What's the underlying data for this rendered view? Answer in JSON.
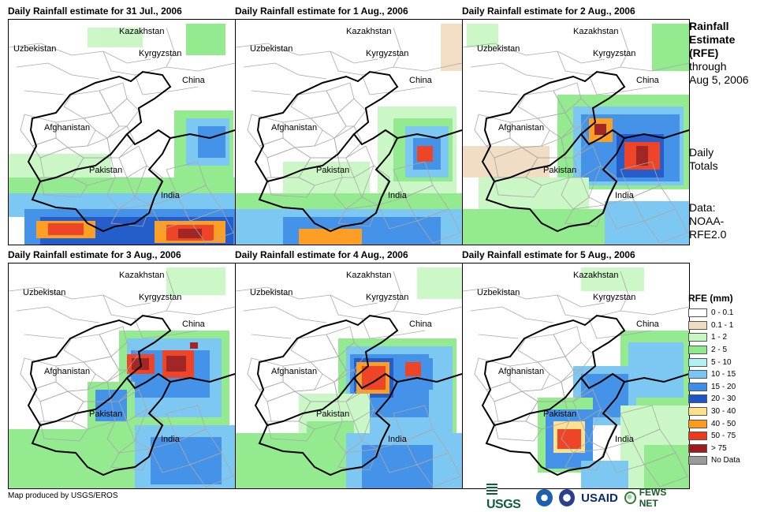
{
  "panels": [
    {
      "title": "Daily Rainfall estimate for 31 Jul., 2006"
    },
    {
      "title": "Daily Rainfall estimate for 1 Aug., 2006"
    },
    {
      "title": "Daily Rainfall estimate for 2 Aug., 2006"
    },
    {
      "title": "Daily Rainfall estimate for 3 Aug., 2006"
    },
    {
      "title": "Daily Rainfall estimate for 4 Aug., 2006"
    },
    {
      "title": "Daily Rainfall estimate for 5 Aug., 2006"
    }
  ],
  "map_labels": {
    "kazakhstan": "Kazakhstan",
    "uzbekistan": "Uzbekistan",
    "kyrgyzstan": "Kyrgyzstan",
    "china": "China",
    "afghanistan": "Afghanistan",
    "pakistan": "Pakistan",
    "india": "India"
  },
  "sidebar": {
    "heading_line1": "Rainfall",
    "heading_line2": "Estimate",
    "heading_line3": "(RFE)",
    "through_line1": "through",
    "through_line2": "Aug 5, 2006",
    "totals_line1": "Daily",
    "totals_line2": "Totals",
    "data_line1": "Data:",
    "data_line2": "NOAA-",
    "data_line3": "RFE2.0"
  },
  "legend": {
    "title": "RFE (mm)",
    "items": [
      {
        "label": "0 - 0.1",
        "color": "#ffffff"
      },
      {
        "label": "0.1 - 1",
        "color": "#f0dcc0"
      },
      {
        "label": "1 - 2",
        "color": "#c9f7c4"
      },
      {
        "label": "2 - 5",
        "color": "#8ee98a"
      },
      {
        "label": "5 - 10",
        "color": "#aef2f2"
      },
      {
        "label": "10 - 15",
        "color": "#77c6f3"
      },
      {
        "label": "15 - 20",
        "color": "#3c8ee8"
      },
      {
        "label": "20 - 30",
        "color": "#1a56c8"
      },
      {
        "label": "30 - 40",
        "color": "#fde089"
      },
      {
        "label": "40 - 50",
        "color": "#fd9a1a"
      },
      {
        "label": "50 - 75",
        "color": "#ee3a1c"
      },
      {
        "label": "> 75",
        "color": "#9d1b1b"
      },
      {
        "label": "No Data",
        "color": "#9a9a9a"
      }
    ]
  },
  "footer": {
    "credit": "Map produced by USGS/EROS",
    "logo_usgs": "USGS",
    "logo_usaid": "USAID",
    "logo_fews": "FEWS NET"
  }
}
